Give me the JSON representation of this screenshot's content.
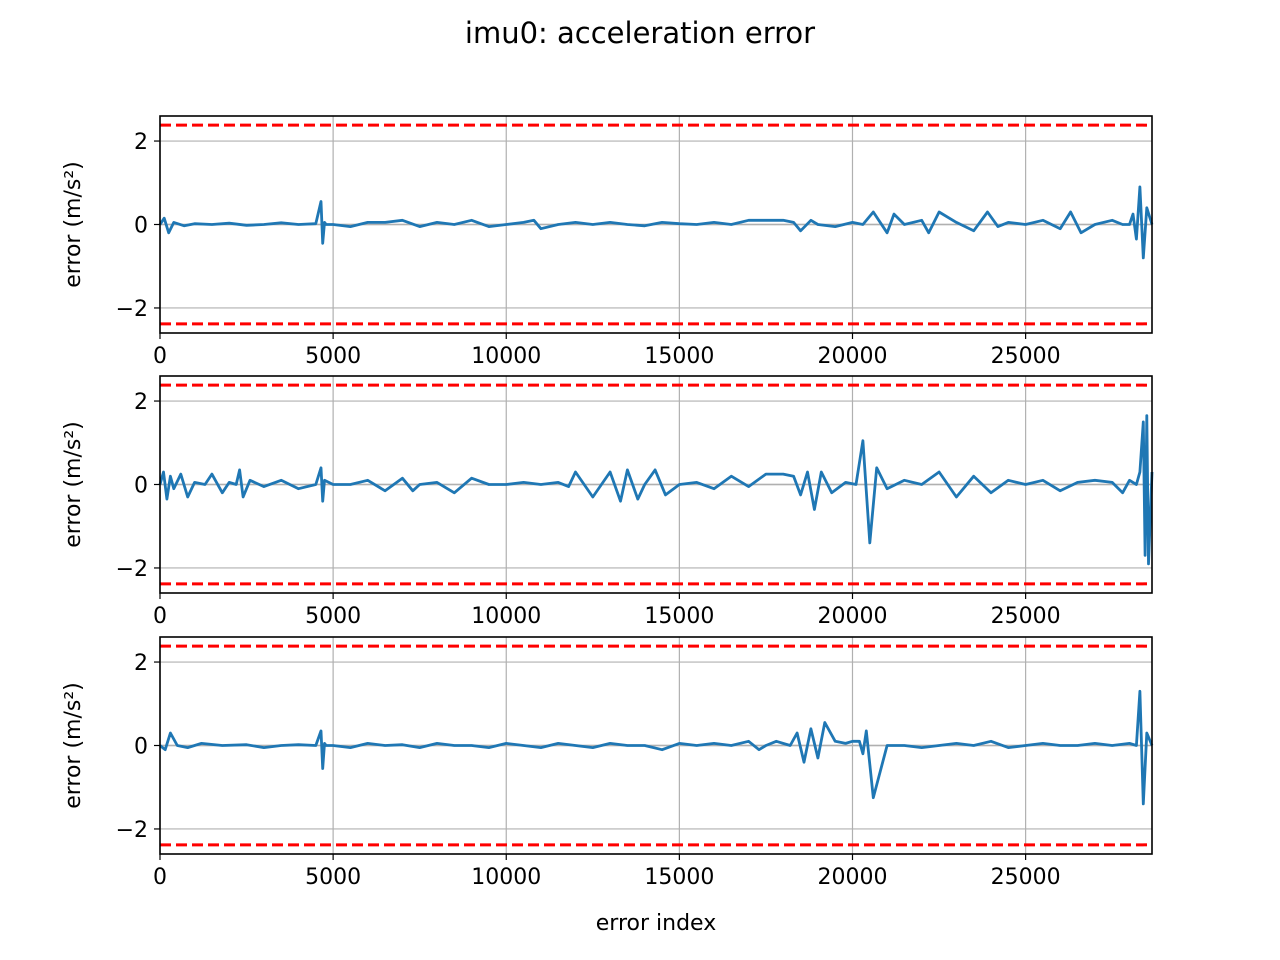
{
  "title": "imu0: acceleration error",
  "colors": {
    "series": "#1f77b4",
    "threshold": "#ff0000",
    "grid": "#b0b0b0"
  },
  "chart_data": [
    {
      "type": "line",
      "xlabel": "",
      "ylabel": "error (m/s²)",
      "xlim": [
        0,
        28650
      ],
      "ylim": [
        -2.6,
        2.6
      ],
      "xticks": [
        0,
        5000,
        10000,
        15000,
        20000,
        25000
      ],
      "yticks": [
        -2,
        0,
        2
      ],
      "grid": true,
      "threshold_lines": [
        2.38,
        -2.38
      ],
      "baseline": 0.0,
      "series": [
        {
          "x": [
            0,
            120,
            250,
            400,
            700,
            1000,
            1500,
            2000,
            2500,
            3000,
            3500,
            4000,
            4500,
            4650,
            4700,
            4750,
            4800,
            5000,
            5500,
            6000,
            6500,
            7000,
            7500,
            8000,
            8500,
            9000,
            9500,
            10000,
            10500,
            10800,
            11000,
            11500,
            12000,
            12500,
            13000,
            13500,
            14000,
            14500,
            15000,
            15500,
            16000,
            16500,
            17000,
            17500,
            18000,
            18300,
            18500,
            18800,
            19000,
            19500,
            20000,
            20300,
            20600,
            21000,
            21200,
            21500,
            22000,
            22200,
            22500,
            23000,
            23500,
            23900,
            24200,
            24500,
            25000,
            25500,
            26000,
            26300,
            26600,
            27000,
            27500,
            27800,
            28000,
            28100,
            28200,
            28300,
            28400,
            28500,
            28650
          ],
          "y": [
            0.0,
            0.15,
            -0.2,
            0.05,
            -0.03,
            0.02,
            0.0,
            0.03,
            -0.02,
            0.0,
            0.04,
            0.0,
            0.02,
            0.55,
            -0.45,
            0.05,
            0.0,
            0.0,
            -0.05,
            0.05,
            0.05,
            0.1,
            -0.05,
            0.05,
            0.0,
            0.1,
            -0.05,
            0.0,
            0.05,
            0.1,
            -0.1,
            0.0,
            0.05,
            0.0,
            0.05,
            0.0,
            -0.03,
            0.05,
            0.02,
            0.0,
            0.05,
            0.0,
            0.1,
            0.1,
            0.1,
            0.05,
            -0.15,
            0.1,
            0.0,
            -0.05,
            0.05,
            0.0,
            0.3,
            -0.2,
            0.25,
            0.0,
            0.1,
            -0.2,
            0.3,
            0.05,
            -0.15,
            0.3,
            -0.05,
            0.05,
            0.0,
            0.1,
            -0.1,
            0.3,
            -0.2,
            0.0,
            0.1,
            0.0,
            0.0,
            0.25,
            -0.35,
            0.9,
            -0.8,
            0.4,
            0.0
          ]
        }
      ]
    },
    {
      "type": "line",
      "xlabel": "",
      "ylabel": "error (m/s²)",
      "xlim": [
        0,
        28650
      ],
      "ylim": [
        -2.6,
        2.6
      ],
      "xticks": [
        0,
        5000,
        10000,
        15000,
        20000,
        25000
      ],
      "yticks": [
        -2,
        0,
        2
      ],
      "grid": true,
      "threshold_lines": [
        2.38,
        -2.38
      ],
      "baseline": 0.0,
      "series": [
        {
          "x": [
            0,
            100,
            200,
            300,
            400,
            600,
            800,
            1000,
            1300,
            1500,
            1800,
            2000,
            2200,
            2300,
            2400,
            2600,
            3000,
            3500,
            4000,
            4500,
            4650,
            4700,
            4750,
            5000,
            5500,
            6000,
            6500,
            7000,
            7300,
            7500,
            8000,
            8500,
            9000,
            9500,
            10000,
            10500,
            11000,
            11500,
            11800,
            12000,
            12500,
            13000,
            13300,
            13500,
            13800,
            14000,
            14300,
            14600,
            15000,
            15500,
            16000,
            16500,
            17000,
            17500,
            18000,
            18300,
            18500,
            18700,
            18900,
            19100,
            19400,
            19800,
            20100,
            20300,
            20500,
            20700,
            21000,
            21500,
            22000,
            22500,
            23000,
            23500,
            24000,
            24500,
            25000,
            25500,
            26000,
            26500,
            27000,
            27500,
            27800,
            28000,
            28200,
            28300,
            28400,
            28450,
            28500,
            28550,
            28650
          ],
          "y": [
            0.0,
            0.3,
            -0.35,
            0.2,
            -0.1,
            0.25,
            -0.3,
            0.05,
            0.0,
            0.25,
            -0.2,
            0.05,
            0.0,
            0.35,
            -0.3,
            0.1,
            -0.05,
            0.1,
            -0.1,
            0.0,
            0.4,
            -0.4,
            0.1,
            0.0,
            0.0,
            0.1,
            -0.15,
            0.15,
            -0.15,
            0.0,
            0.05,
            -0.2,
            0.15,
            0.0,
            0.0,
            0.05,
            0.0,
            0.05,
            -0.05,
            0.3,
            -0.3,
            0.3,
            -0.4,
            0.35,
            -0.35,
            0.0,
            0.35,
            -0.25,
            0.0,
            0.05,
            -0.1,
            0.2,
            -0.05,
            0.25,
            0.25,
            0.2,
            -0.25,
            0.3,
            -0.6,
            0.3,
            -0.2,
            0.05,
            0.0,
            1.05,
            -1.4,
            0.4,
            -0.1,
            0.1,
            0.0,
            0.3,
            -0.3,
            0.2,
            -0.2,
            0.1,
            0.0,
            0.1,
            -0.15,
            0.05,
            0.1,
            0.05,
            -0.2,
            0.1,
            0.0,
            0.3,
            1.5,
            -1.7,
            1.65,
            -1.9,
            0.3
          ]
        }
      ]
    },
    {
      "type": "line",
      "xlabel": "error index",
      "ylabel": "error (m/s²)",
      "xlim": [
        0,
        28650
      ],
      "ylim": [
        -2.6,
        2.6
      ],
      "xticks": [
        0,
        5000,
        10000,
        15000,
        20000,
        25000
      ],
      "yticks": [
        -2,
        0,
        2
      ],
      "grid": true,
      "threshold_lines": [
        2.38,
        -2.38
      ],
      "baseline": 0.0,
      "series": [
        {
          "x": [
            0,
            150,
            300,
            500,
            800,
            1200,
            1800,
            2500,
            3000,
            3500,
            4000,
            4500,
            4650,
            4700,
            4750,
            4800,
            5000,
            5500,
            6000,
            6500,
            7000,
            7500,
            8000,
            8500,
            9000,
            9500,
            10000,
            10500,
            11000,
            11500,
            12000,
            12500,
            13000,
            13500,
            14000,
            14500,
            15000,
            15500,
            16000,
            16500,
            17000,
            17300,
            17500,
            17800,
            18200,
            18400,
            18600,
            18800,
            19000,
            19200,
            19500,
            19800,
            20000,
            20200,
            20300,
            20400,
            20600,
            21000,
            21500,
            22000,
            22500,
            23000,
            23500,
            24000,
            24500,
            25000,
            25500,
            26000,
            26500,
            27000,
            27500,
            28000,
            28200,
            28300,
            28400,
            28500,
            28650
          ],
          "y": [
            0.0,
            -0.1,
            0.3,
            0.0,
            -0.05,
            0.05,
            0.0,
            0.02,
            -0.05,
            0.0,
            0.02,
            0.0,
            0.35,
            -0.55,
            0.05,
            0.0,
            0.0,
            -0.05,
            0.05,
            0.0,
            0.02,
            -0.05,
            0.05,
            0.0,
            0.0,
            -0.05,
            0.05,
            0.0,
            -0.05,
            0.05,
            0.0,
            -0.05,
            0.05,
            0.0,
            0.0,
            -0.1,
            0.05,
            0.0,
            0.05,
            0.0,
            0.1,
            -0.1,
            0.0,
            0.1,
            0.0,
            0.3,
            -0.4,
            0.4,
            -0.3,
            0.55,
            0.1,
            0.05,
            0.1,
            0.1,
            -0.2,
            0.35,
            -1.25,
            0.0,
            0.0,
            -0.05,
            0.0,
            0.05,
            0.0,
            0.1,
            -0.05,
            0.0,
            0.05,
            0.0,
            0.0,
            0.05,
            0.0,
            0.05,
            0.0,
            1.3,
            -1.4,
            0.3,
            0.0
          ]
        }
      ]
    }
  ]
}
